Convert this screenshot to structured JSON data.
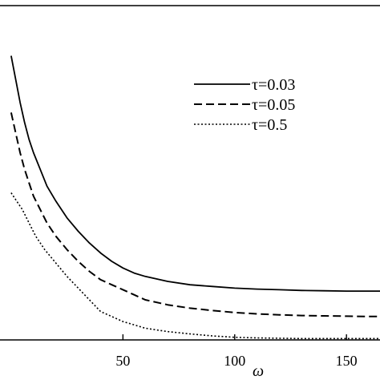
{
  "chart_data": {
    "type": "line",
    "title": "",
    "xlabel": "ω",
    "ylabel": "",
    "xlim": [
      -5,
      165
    ],
    "ylim": [
      0,
      1
    ],
    "xticks": [
      50,
      100,
      150
    ],
    "grid": false,
    "legend_position": "top-right",
    "series": [
      {
        "name": "τ=0.03",
        "style": "solid",
        "x": [
          0,
          2,
          4,
          6,
          8,
          10,
          13,
          16,
          20,
          25,
          30,
          35,
          40,
          45,
          50,
          55,
          60,
          70,
          80,
          90,
          100,
          110,
          120,
          130,
          140,
          150,
          160,
          165
        ],
        "y": [
          0.85,
          0.78,
          0.71,
          0.65,
          0.6,
          0.56,
          0.51,
          0.46,
          0.415,
          0.365,
          0.325,
          0.29,
          0.26,
          0.235,
          0.215,
          0.2,
          0.19,
          0.175,
          0.165,
          0.16,
          0.155,
          0.152,
          0.15,
          0.148,
          0.147,
          0.146,
          0.146,
          0.146
        ]
      },
      {
        "name": "τ=0.05",
        "style": "dashed",
        "x": [
          0,
          2,
          4,
          6,
          8,
          10,
          13,
          16,
          20,
          25,
          30,
          35,
          40,
          45,
          50,
          55,
          60,
          70,
          80,
          90,
          100,
          110,
          120,
          130,
          140,
          150,
          160,
          165
        ],
        "y": [
          0.68,
          0.62,
          0.56,
          0.51,
          0.47,
          0.43,
          0.39,
          0.35,
          0.31,
          0.27,
          0.235,
          0.205,
          0.18,
          0.165,
          0.15,
          0.135,
          0.12,
          0.105,
          0.095,
          0.088,
          0.082,
          0.078,
          0.075,
          0.073,
          0.072,
          0.071,
          0.07,
          0.07
        ]
      },
      {
        "name": "τ=0.5",
        "style": "dotted",
        "x": [
          0,
          2,
          5,
          8,
          11,
          15,
          20,
          25,
          30,
          35,
          40,
          45,
          50,
          55,
          60,
          70,
          80,
          90,
          100,
          110,
          120,
          130,
          140,
          150,
          160,
          165
        ],
        "y": [
          0.44,
          0.42,
          0.39,
          0.35,
          0.31,
          0.27,
          0.23,
          0.19,
          0.155,
          0.12,
          0.085,
          0.07,
          0.055,
          0.045,
          0.035,
          0.025,
          0.018,
          0.012,
          0.008,
          0.006,
          0.005,
          0.004,
          0.004,
          0.004,
          0.004,
          0.004
        ]
      }
    ]
  }
}
